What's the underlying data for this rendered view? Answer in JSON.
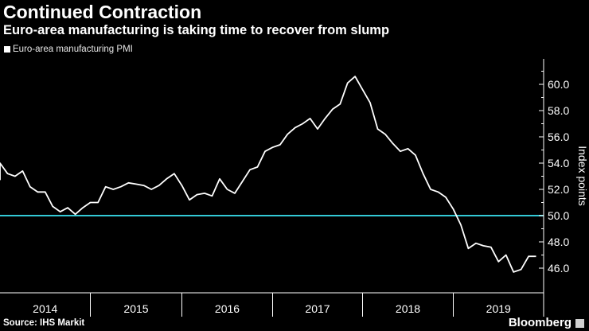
{
  "chart_data": {
    "type": "line",
    "title": "Continued Contraction",
    "subtitle": "Euro-area manufacturing is taking time to recover from slump",
    "ylabel": "Index points",
    "ylim": [
      45,
      61.8
    ],
    "yticks": [
      "46.0",
      "48.0",
      "50.0",
      "52.0",
      "54.0",
      "56.0",
      "58.0",
      "60.0"
    ],
    "x_year_labels": [
      "2014",
      "2015",
      "2016",
      "2017",
      "2018",
      "2019"
    ],
    "reference_line": {
      "y": 50.0,
      "color": "#33c9d6"
    },
    "grid": false,
    "legend_position": "top-left",
    "series": [
      {
        "name": "Euro-area manufacturing PMI",
        "color": "#ffffff",
        "x": [
          "2013-12",
          "2014-01",
          "2014-02",
          "2014-03",
          "2014-04",
          "2014-05",
          "2014-06",
          "2014-07",
          "2014-08",
          "2014-09",
          "2014-10",
          "2014-11",
          "2014-12",
          "2015-01",
          "2015-02",
          "2015-03",
          "2015-04",
          "2015-05",
          "2015-06",
          "2015-07",
          "2015-08",
          "2015-09",
          "2015-10",
          "2015-11",
          "2015-12",
          "2016-01",
          "2016-02",
          "2016-03",
          "2016-04",
          "2016-05",
          "2016-06",
          "2016-07",
          "2016-08",
          "2016-09",
          "2016-10",
          "2016-11",
          "2016-12",
          "2017-01",
          "2017-02",
          "2017-03",
          "2017-04",
          "2017-05",
          "2017-06",
          "2017-07",
          "2017-08",
          "2017-09",
          "2017-10",
          "2017-11",
          "2017-12",
          "2018-01",
          "2018-02",
          "2018-03",
          "2018-04",
          "2018-05",
          "2018-06",
          "2018-07",
          "2018-08",
          "2018-09",
          "2018-10",
          "2018-11",
          "2018-12",
          "2019-01",
          "2019-02",
          "2019-03",
          "2019-04",
          "2019-05",
          "2019-06",
          "2019-07",
          "2019-08",
          "2019-09",
          "2019-10",
          "2019-11",
          "2019-12"
        ],
        "values": [
          52.7,
          54.0,
          53.2,
          53.0,
          53.4,
          52.2,
          51.8,
          51.8,
          50.7,
          50.3,
          50.6,
          50.1,
          50.6,
          51.0,
          51.0,
          52.2,
          52.0,
          52.2,
          52.5,
          52.4,
          52.3,
          52.0,
          52.3,
          52.8,
          53.2,
          52.3,
          51.2,
          51.6,
          51.7,
          51.5,
          52.8,
          52.0,
          51.7,
          52.6,
          53.5,
          53.7,
          54.9,
          55.2,
          55.4,
          56.2,
          56.7,
          57.0,
          57.4,
          56.6,
          57.4,
          58.1,
          58.5,
          60.1,
          60.6,
          59.6,
          58.6,
          56.6,
          56.2,
          55.5,
          54.9,
          55.1,
          54.6,
          53.2,
          52.0,
          51.8,
          51.4,
          50.5,
          49.3,
          47.5,
          47.9,
          47.7,
          47.6,
          46.5,
          47.0,
          45.7,
          45.9,
          46.9,
          46.9
        ]
      }
    ]
  },
  "legend": {
    "label": "Euro-area manufacturing PMI"
  },
  "footer": {
    "source": "Source: IHS Markit",
    "brand": "Bloomberg"
  }
}
